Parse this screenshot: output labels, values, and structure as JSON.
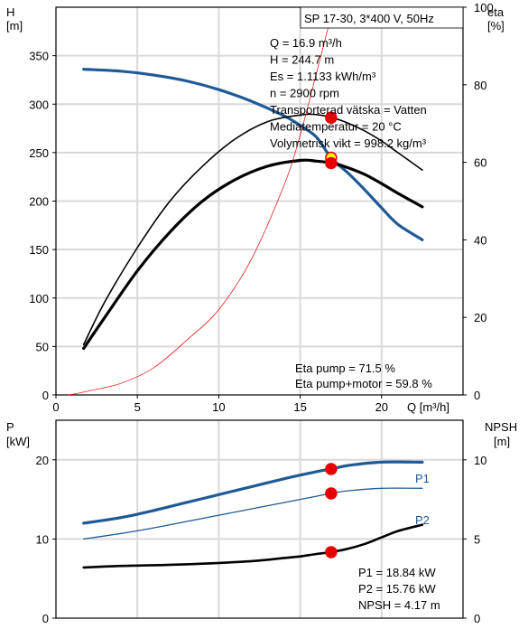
{
  "colors": {
    "curve_blue": "#1f5a96",
    "curve_black": "#000000",
    "marker_red": "#e60000",
    "marker_yellow": "#ffff00",
    "grid": "#d9d9d9",
    "system_curve": "#e60000"
  },
  "chart_data": [
    {
      "type": "line",
      "title": "SP 17-30, 3*400 V, 50Hz",
      "left_axis": {
        "label_line1": "H",
        "label_line2": "[m]",
        "ylim": [
          0,
          400
        ],
        "ticks": [
          0,
          50,
          100,
          150,
          200,
          250,
          300,
          350
        ]
      },
      "right_axis": {
        "label_line1": "eta",
        "label_line2": "[%]",
        "ylim": [
          0,
          100
        ],
        "ticks": [
          0,
          20,
          40,
          60,
          80,
          100
        ]
      },
      "x_axis": {
        "label": "Q [m³/h]",
        "xlim": [
          0,
          25
        ],
        "ticks": [
          0,
          5,
          10,
          15,
          20
        ]
      },
      "grid": true,
      "info_lines": [
        "Q = 16.9 m³/h",
        "H = 244.7 m",
        "Es = 1.1133 kWh/m³",
        "n = 2900 rpm",
        "Transporterad vätska = Vatten",
        "Mediatemperatur = 20 °C",
        "Volymetrisk vikt = 998.2 kg/m³"
      ],
      "eta_lines": [
        "Eta pump = 71.5 %",
        "Eta pump+motor = 59.8 %"
      ],
      "series": [
        {
          "axis": "left",
          "color": "#1f5a96",
          "width": 3.2,
          "x": [
            1.7,
            4,
            6,
            8,
            10,
            12,
            14,
            15,
            16,
            16.9,
            18,
            19,
            20,
            21,
            22.5
          ],
          "y": [
            336,
            334,
            330,
            324,
            315,
            303,
            288,
            278,
            266,
            244.7,
            228,
            211,
            193,
            176,
            160
          ]
        },
        {
          "axis": "right",
          "color": "#000000",
          "width": 1.6,
          "x": [
            1.7,
            3,
            5,
            7,
            9,
            11,
            13,
            15,
            16,
            17,
            18,
            19,
            20,
            21,
            22.5
          ],
          "y": [
            13,
            24,
            38,
            50,
            59,
            66,
            70.5,
            72.2,
            72.3,
            71.5,
            70,
            68,
            65.5,
            62.5,
            58
          ]
        },
        {
          "axis": "right",
          "color": "#000000",
          "width": 3.2,
          "x": [
            1.7,
            3,
            5,
            7,
            9,
            11,
            13,
            15,
            16,
            17,
            18,
            19,
            20,
            21,
            22.5
          ],
          "y": [
            12,
            20,
            32,
            42,
            50,
            55.5,
            59,
            60.5,
            60.3,
            59.8,
            58.5,
            56.8,
            54.5,
            52,
            48.5
          ]
        },
        {
          "axis": "right",
          "color": "#e60000",
          "width": 0.7,
          "x": [
            0.8,
            2,
            4,
            6,
            8,
            10,
            12,
            14,
            15,
            16,
            16.9
          ],
          "y": [
            0,
            1,
            3,
            7,
            14,
            22,
            35,
            54,
            67,
            83,
            97.8
          ]
        }
      ],
      "points": [
        {
          "x": 16.9,
          "y": 244.7,
          "axis": "left",
          "fill": "#ffff00",
          "stroke": "#e60000"
        },
        {
          "x": 16.9,
          "y": 71.5,
          "axis": "right",
          "fill": "#e60000",
          "stroke": "#e60000"
        },
        {
          "x": 16.9,
          "y": 59.8,
          "axis": "right",
          "fill": "#e60000",
          "stroke": "#e60000"
        }
      ]
    },
    {
      "type": "line",
      "left_axis": {
        "label_line1": "P",
        "label_line2": "[kW]",
        "ylim": [
          0,
          25
        ],
        "ticks": [
          0,
          10,
          20
        ]
      },
      "right_axis": {
        "label_line1": "NPSH",
        "label_line2": "[m]",
        "ylim": [
          0,
          12.5
        ],
        "ticks": [
          0,
          5,
          10
        ]
      },
      "x_axis": {
        "xlim": [
          0,
          25
        ]
      },
      "grid": true,
      "info_lines": [
        "P1 = 18.84 kW",
        "P2 = 15.76 kW",
        "NPSH = 4.17 m"
      ],
      "series_labels": [
        "P1",
        "P2"
      ],
      "series": [
        {
          "name": "P1",
          "axis": "left",
          "color": "#1f5a96",
          "width": 3.2,
          "x": [
            1.7,
            4,
            6,
            8,
            10,
            12,
            14,
            16,
            16.9,
            18,
            20,
            22.5
          ],
          "y": [
            12.0,
            12.7,
            13.6,
            14.6,
            15.6,
            16.6,
            17.6,
            18.5,
            18.84,
            19.3,
            19.7,
            19.7
          ]
        },
        {
          "name": "P2",
          "axis": "left",
          "color": "#1f5a96",
          "width": 1.3,
          "x": [
            1.7,
            4,
            6,
            8,
            10,
            12,
            14,
            16,
            16.9,
            18,
            20,
            22.5
          ],
          "y": [
            10.0,
            10.7,
            11.4,
            12.2,
            13.0,
            13.8,
            14.6,
            15.4,
            15.76,
            16.1,
            16.4,
            16.4
          ]
        },
        {
          "axis": "right",
          "color": "#000000",
          "width": 2.6,
          "x": [
            1.7,
            4,
            8,
            12,
            14,
            15,
            16,
            16.9,
            18,
            19,
            20,
            21,
            22.5
          ],
          "y": [
            3.2,
            3.3,
            3.4,
            3.6,
            3.8,
            3.9,
            4.05,
            4.17,
            4.4,
            4.7,
            5.1,
            5.5,
            5.9
          ]
        }
      ],
      "points": [
        {
          "x": 16.9,
          "y": 18.84,
          "axis": "left",
          "fill": "#e60000",
          "stroke": "#e60000"
        },
        {
          "x": 16.9,
          "y": 15.76,
          "axis": "left",
          "fill": "#e60000",
          "stroke": "#e60000"
        },
        {
          "x": 16.9,
          "y": 4.17,
          "axis": "right",
          "fill": "#e60000",
          "stroke": "#e60000"
        }
      ]
    }
  ]
}
